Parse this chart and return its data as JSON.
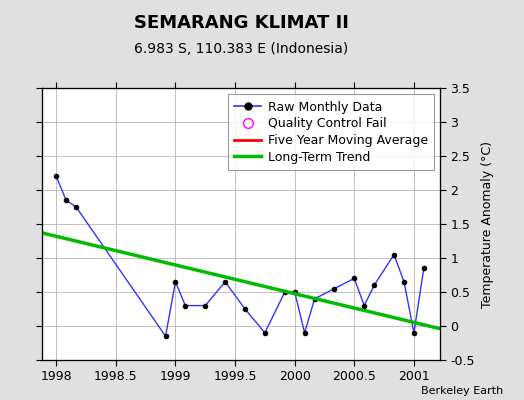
{
  "title": "SEMARANG KLIMAT II",
  "subtitle": "6.983 S, 110.383 E (Indonesia)",
  "ylabel": "Temperature Anomaly (°C)",
  "attribution": "Berkeley Earth",
  "xlim": [
    1997.88,
    2001.22
  ],
  "ylim": [
    -0.5,
    3.5
  ],
  "xticks": [
    1998,
    1998.5,
    1999,
    1999.5,
    2000,
    2000.5,
    2001
  ],
  "yticks": [
    -0.5,
    0,
    0.5,
    1,
    1.5,
    2,
    2.5,
    3,
    3.5
  ],
  "raw_x": [
    1998.0,
    1998.083,
    1998.167,
    1998.917,
    1999.0,
    1999.083,
    1999.25,
    1999.417,
    1999.583,
    1999.75,
    1999.917,
    2000.0,
    2000.083,
    2000.167,
    2000.333,
    2000.5,
    2000.583,
    2000.667,
    2000.833,
    2000.917,
    2001.0,
    2001.083
  ],
  "raw_y": [
    2.2,
    1.85,
    1.75,
    -0.15,
    0.65,
    0.3,
    0.3,
    0.65,
    0.25,
    -0.1,
    0.5,
    0.5,
    -0.1,
    0.4,
    0.55,
    0.7,
    0.3,
    0.6,
    1.05,
    0.65,
    -0.1,
    0.85
  ],
  "trend_x": [
    1997.88,
    2001.22
  ],
  "trend_y": [
    1.37,
    -0.04
  ],
  "raw_color": "#3333ff",
  "trend_color": "#00bb00",
  "moving_avg_color": "#ff0000",
  "background_color": "#e0e0e0",
  "plot_bg_color": "#ffffff",
  "grid_color": "#c0c0c0",
  "title_fontsize": 13,
  "subtitle_fontsize": 10,
  "tick_fontsize": 9,
  "legend_fontsize": 9
}
